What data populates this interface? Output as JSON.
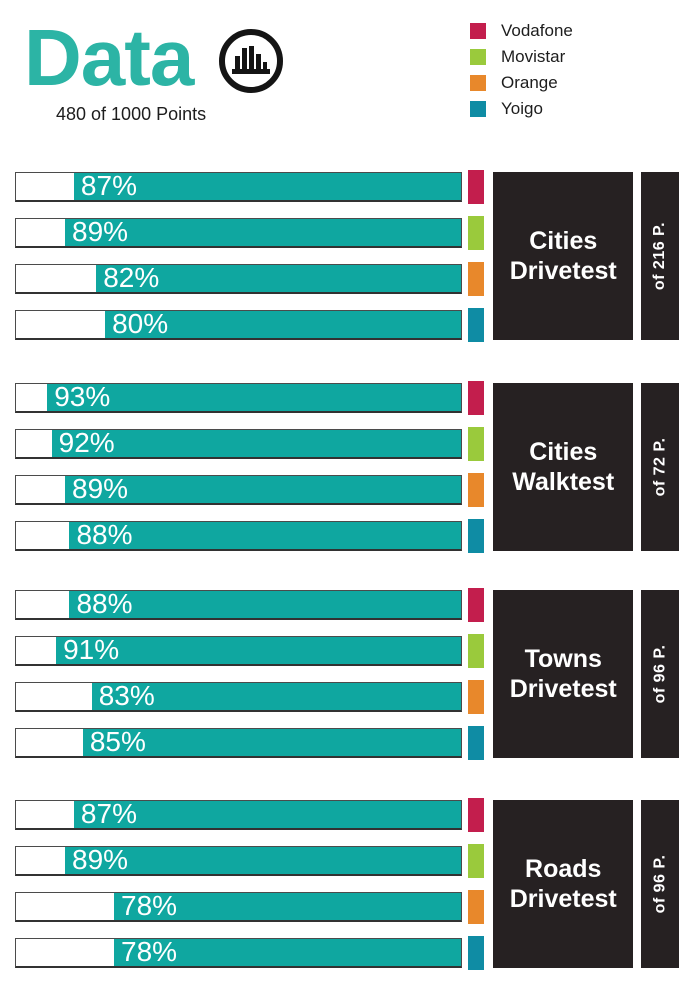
{
  "header": {
    "title": "Data",
    "subtitle": "480 of 1000 Points"
  },
  "legend": {
    "items": [
      {
        "label": "Vodafone",
        "color": "#C31E4D"
      },
      {
        "label": "Movistar",
        "color": "#9ACA3C"
      },
      {
        "label": "Orange",
        "color": "#E8882B"
      },
      {
        "label": "Yoigo",
        "color": "#0F8CA4"
      }
    ]
  },
  "colors": {
    "title_teal": "#2CB4A5",
    "bar_fill": "#0FA7A0",
    "box_black": "#262122"
  },
  "groups": [
    {
      "label": "Cities Drivetest",
      "points": "of 216 P.",
      "bars": [
        {
          "operator": "Vodafone",
          "pct": 87,
          "label": "87%"
        },
        {
          "operator": "Movistar",
          "pct": 89,
          "label": "89%"
        },
        {
          "operator": "Orange",
          "pct": 82,
          "label": "82%"
        },
        {
          "operator": "Yoigo",
          "pct": 80,
          "label": "80%"
        }
      ]
    },
    {
      "label": "Cities Walktest",
      "points": "of 72 P.",
      "bars": [
        {
          "operator": "Vodafone",
          "pct": 93,
          "label": "93%"
        },
        {
          "operator": "Movistar",
          "pct": 92,
          "label": "92%"
        },
        {
          "operator": "Orange",
          "pct": 89,
          "label": "89%"
        },
        {
          "operator": "Yoigo",
          "pct": 88,
          "label": "88%"
        }
      ]
    },
    {
      "label": "Towns Drivetest",
      "points": "of 96 P.",
      "bars": [
        {
          "operator": "Vodafone",
          "pct": 88,
          "label": "88%"
        },
        {
          "operator": "Movistar",
          "pct": 91,
          "label": "91%"
        },
        {
          "operator": "Orange",
          "pct": 83,
          "label": "83%"
        },
        {
          "operator": "Yoigo",
          "pct": 85,
          "label": "85%"
        }
      ]
    },
    {
      "label": "Roads Drivetest",
      "points": "of 96 P.",
      "bars": [
        {
          "operator": "Vodafone",
          "pct": 87,
          "label": "87%"
        },
        {
          "operator": "Movistar",
          "pct": 89,
          "label": "89%"
        },
        {
          "operator": "Orange",
          "pct": 78,
          "label": "78%"
        },
        {
          "operator": "Yoigo",
          "pct": 78,
          "label": "78%"
        }
      ]
    }
  ],
  "chart_data": {
    "type": "bar",
    "orientation": "horizontal",
    "title": "Data",
    "subtitle": "480 of 1000 Points",
    "unit": "%",
    "xlim": [
      0,
      100
    ],
    "categories": [
      "Cities Drivetest",
      "Cities Walktest",
      "Towns Drivetest",
      "Roads Drivetest"
    ],
    "category_points": [
      "of 216 P.",
      "of 72 P.",
      "of 96 P.",
      "of 96 P."
    ],
    "series": [
      {
        "name": "Vodafone",
        "color": "#C31E4D",
        "values": [
          87,
          93,
          88,
          87
        ]
      },
      {
        "name": "Movistar",
        "color": "#9ACA3C",
        "values": [
          89,
          92,
          91,
          89
        ]
      },
      {
        "name": "Orange",
        "color": "#E8882B",
        "values": [
          82,
          89,
          83,
          78
        ]
      },
      {
        "name": "Yoigo",
        "color": "#0F8CA4",
        "values": [
          80,
          88,
          85,
          78
        ]
      }
    ],
    "bar_fill_color": "#0FA7A0"
  }
}
